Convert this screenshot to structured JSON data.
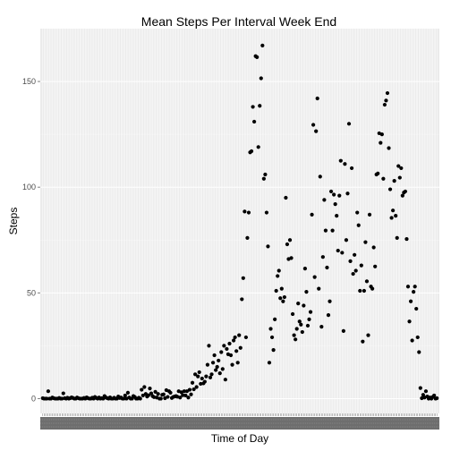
{
  "chart_data": {
    "type": "scatter",
    "title": "Mean Steps Per Interval Week End",
    "xlabel": "Time of Day",
    "ylabel": "Steps",
    "ylim": [
      -7,
      175
    ],
    "xlim": [
      0,
      288
    ],
    "y_ticks": [
      0,
      50,
      100,
      150
    ],
    "grid": true,
    "legend": "none",
    "x_tick_labels_note": "288 interval labels, overlapping and unreadable",
    "colors": {
      "panel": "#ebebeb",
      "grid_major": "#ffffff",
      "grid_minor": "#f5f5f5",
      "point": "#000000",
      "tick_text": "#4d4d4d"
    },
    "y": [
      0.2,
      0.0,
      0.0,
      0.0,
      3.5,
      0.0,
      0.0,
      0.5,
      0.2,
      0.0,
      0.0,
      0.0,
      0.3,
      0.0,
      0.0,
      2.5,
      0.2,
      0.0,
      0.4,
      0.0,
      0.2,
      0.6,
      0.3,
      0.0,
      0.0,
      0.5,
      0.2,
      0.0,
      0.0,
      0.0,
      0.3,
      0.0,
      0.6,
      0.2,
      0.0,
      0.0,
      0.4,
      0.0,
      0.8,
      0.3,
      0.0,
      0.5,
      0.0,
      0.2,
      0.0,
      1.2,
      0.5,
      0.2,
      0.0,
      0.6,
      0.0,
      0.0,
      0.4,
      0.0,
      0.0,
      1.0,
      0.3,
      0.5,
      0.0,
      0.0,
      1.5,
      0.0,
      2.8,
      0.5,
      0.0,
      0.0,
      1.2,
      0.8,
      0.0,
      0.0,
      0.4,
      0.0,
      4.2,
      1.5,
      5.5,
      2.2,
      1.0,
      1.6,
      4.8,
      2.5,
      1.2,
      0.7,
      3.2,
      0.5,
      2.2,
      0.0,
      0.0,
      1.8,
      2.0,
      0.2,
      4.0,
      0.8,
      3.5,
      2.8,
      0.3,
      0.8,
      1.0,
      1.2,
      0.9,
      3.5,
      0.5,
      3.0,
      1.6,
      3.5,
      1.5,
      3.5,
      0.5,
      4.2,
      2.0,
      7.5,
      4.4,
      11.5,
      5.5,
      10.5,
      12.5,
      7.0,
      9.5,
      7.2,
      8.0,
      10.5,
      16.0,
      25.0,
      10.0,
      11.5,
      17.0,
      20.5,
      13.5,
      15.0,
      18.0,
      12.0,
      22.0,
      14.0,
      25.0,
      9.0,
      23.5,
      21.0,
      26.0,
      20.5,
      16.0,
      27.5,
      29.0,
      22.5,
      17.0,
      30.0,
      24.0,
      47.0,
      57.0,
      88.5,
      29.0,
      76.0,
      88.0,
      116.5,
      117.0,
      138.0,
      131.0,
      162.0,
      161.5,
      119.0,
      138.5,
      151.5,
      167.0,
      104.0,
      106.0,
      88.0,
      72.0,
      17.0,
      33.0,
      29.0,
      23.0,
      37.5,
      51.0,
      58.0,
      60.5,
      47.5,
      52.0,
      46.0,
      48.0,
      95.0,
      73.0,
      66.0,
      75.0,
      66.5,
      40.0,
      30.0,
      28.0,
      33.0,
      45.0,
      36.5,
      35.0,
      31.5,
      44.0,
      61.5,
      50.5,
      34.5,
      37.5,
      41.0,
      87.0,
      129.5,
      57.5,
      126.5,
      142.0,
      52.0,
      105.0,
      34.0,
      67.0,
      94.0,
      79.5,
      62.0,
      39.5,
      46.0,
      98.0,
      79.5,
      96.5,
      92.0,
      86.5,
      70.0,
      96.0,
      112.5,
      69.0,
      32.0,
      111.0,
      75.0,
      97.0,
      130.0,
      65.0,
      109.0,
      59.0,
      68.0,
      60.5,
      88.0,
      82.0,
      51.0,
      63.0,
      27.0,
      51.0,
      74.0,
      55.5,
      30.0,
      87.0,
      53.0,
      52.0,
      71.5,
      62.5,
      106.0,
      106.5,
      125.5,
      121.0,
      125.0,
      104.0,
      139.0,
      141.0,
      144.5,
      118.5,
      99.0,
      85.5,
      89.0,
      103.0,
      86.5,
      76.0,
      110.0,
      104.5,
      109.0,
      96.0,
      97.5,
      98.0,
      75.5,
      53.0,
      36.5,
      46.0,
      27.5,
      50.5,
      53.0,
      42.5,
      29.0,
      22.0,
      5.0,
      0.2,
      1.8,
      0.5,
      3.5,
      1.0,
      0.0,
      0.5,
      0.0,
      0.8,
      1.5,
      0.0,
      0.2
    ]
  }
}
